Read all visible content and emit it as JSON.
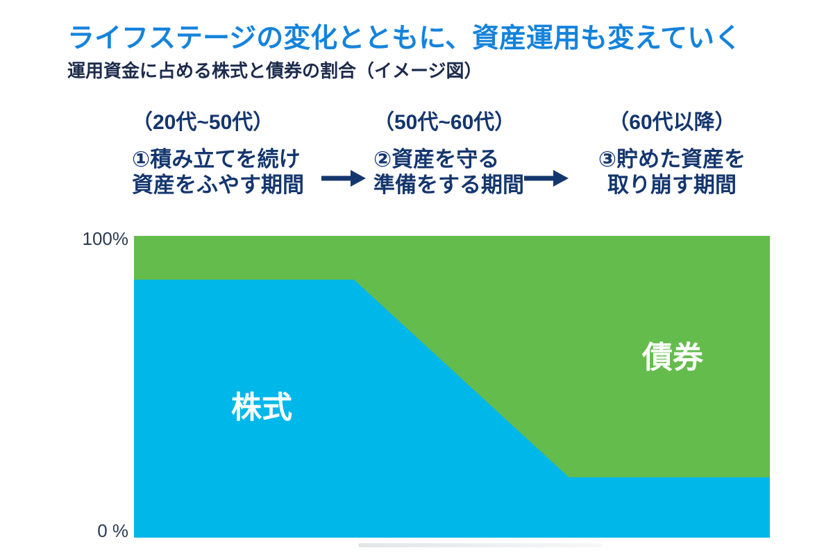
{
  "page": {
    "title": "ライフステージの変化とともに、資産運用も変えていく",
    "subtitle": "運用資金に占める株式と債券の割合（イメージ図）",
    "background": "#ffffff"
  },
  "colors": {
    "title_blue": "#1583db",
    "subtitle_navy": "#1d2b4c",
    "stage_navy": "#14366e",
    "arrow_navy": "#14366e",
    "axis_text": "#2b3a52",
    "stocks_blue": "#00b7ea",
    "bonds_green": "#64bc4c",
    "area_label_white": "#ffffff"
  },
  "stages": [
    {
      "age_range": "（20代~50代）",
      "desc_line1": "①積み立てを続け",
      "desc_line2": "資産をふやす期間"
    },
    {
      "age_range": "（50代~60代）",
      "desc_line1": "②資産を守る",
      "desc_line2": "準備をする期間"
    },
    {
      "age_range": "（60代以降）",
      "desc_line1": "③貯めた資産を",
      "desc_line2": "取り崩す期間"
    }
  ],
  "chart_data": {
    "type": "area",
    "stacked": true,
    "title": "運用資金に占める株式と債券の割合（イメージ図）",
    "ylim": [
      0,
      100
    ],
    "grid": false,
    "legend_position": "labels inside areas",
    "y_axis_labels": {
      "top": "100%",
      "bottom": "0 %"
    },
    "x_pct": [
      0,
      34.6,
      68.4,
      100
    ],
    "series": [
      {
        "name": "株式",
        "color": "#00b7ea",
        "values_pct": [
          85.5,
          85.5,
          20,
          20
        ]
      },
      {
        "name": "債券",
        "color": "#64bc4c",
        "values_pct": [
          14.5,
          14.5,
          80,
          80
        ]
      }
    ],
    "annotations": [
      {
        "text": "株式",
        "area": "stocks"
      },
      {
        "text": "債券",
        "area": "bonds"
      }
    ]
  }
}
